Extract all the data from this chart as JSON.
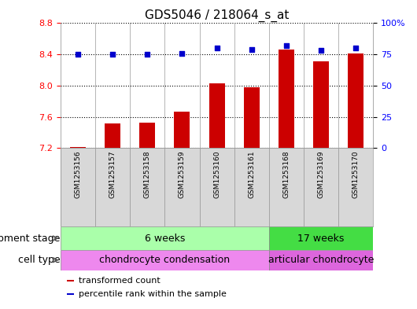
{
  "title": "GDS5046 / 218064_s_at",
  "samples": [
    "GSM1253156",
    "GSM1253157",
    "GSM1253158",
    "GSM1253159",
    "GSM1253160",
    "GSM1253161",
    "GSM1253168",
    "GSM1253169",
    "GSM1253170"
  ],
  "transformed_count": [
    7.21,
    7.51,
    7.52,
    7.67,
    8.03,
    7.98,
    8.46,
    8.31,
    8.41
  ],
  "percentile_rank": [
    75,
    75,
    75,
    76,
    80,
    79,
    82,
    78,
    80
  ],
  "ylim_left": [
    7.2,
    8.8
  ],
  "ylim_right": [
    0,
    100
  ],
  "yticks_left": [
    7.2,
    7.6,
    8.0,
    8.4,
    8.8
  ],
  "yticks_right": [
    0,
    25,
    50,
    75,
    100
  ],
  "ytick_labels_right": [
    "0",
    "25",
    "50",
    "75",
    "100%"
  ],
  "bar_color": "#cc0000",
  "dot_color": "#0000cc",
  "bar_bottom": 7.2,
  "development_stage_groups": [
    {
      "label": "6 weeks",
      "start": 0,
      "end": 5,
      "color": "#aaffaa"
    },
    {
      "label": "17 weeks",
      "start": 6,
      "end": 8,
      "color": "#44dd44"
    }
  ],
  "cell_type_groups": [
    {
      "label": "chondrocyte condensation",
      "start": 0,
      "end": 5,
      "color": "#ee88ee"
    },
    {
      "label": "articular chondrocyte",
      "start": 6,
      "end": 8,
      "color": "#dd66dd"
    }
  ],
  "row_labels": [
    "development stage",
    "cell type"
  ],
  "background_color": "#ffffff",
  "title_fontsize": 11,
  "tick_fontsize": 8,
  "sample_fontsize": 6.5,
  "label_fontsize": 9,
  "legend_fontsize": 8
}
